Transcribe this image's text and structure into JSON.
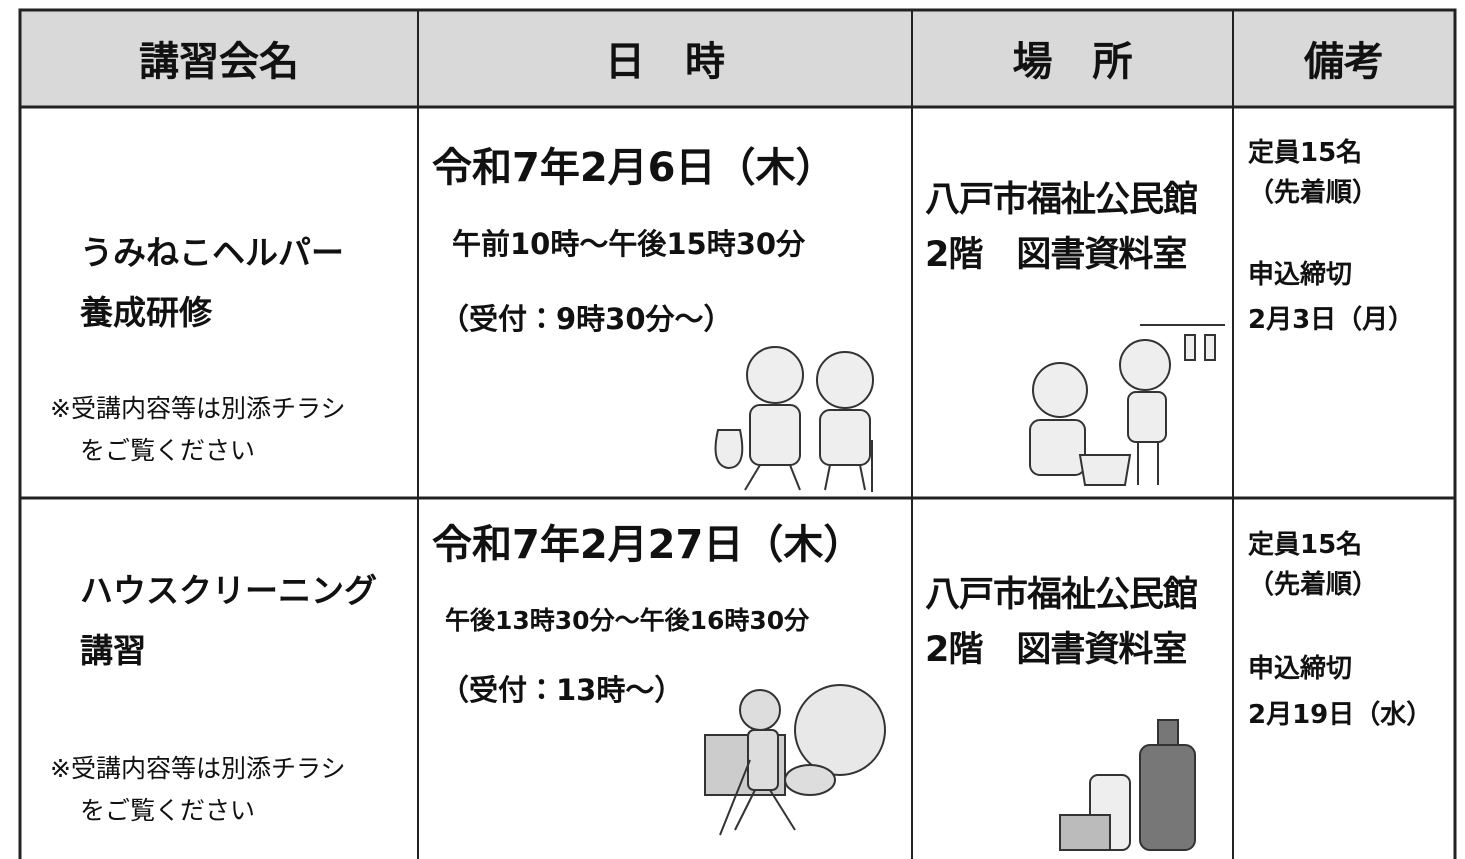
{
  "table": {
    "header": [
      "講習会名",
      "日　時",
      "場　所",
      "備考"
    ],
    "rows": [
      {
        "name": [
          "うみねこヘルパー",
          "養成研修"
        ],
        "note": [
          "※受講内容等は別添チラシ",
          "をご覧ください"
        ],
        "date": "令和7年2月6日（木）",
        "time": "午前10時～午後15時30分",
        "reception": "（受付：9時30分～）",
        "place": [
          "八戸市福祉公民館",
          "2階　図書資料室"
        ],
        "remarks": [
          "定員15名",
          "（先着順）",
          "申込締切",
          "2月3日（月）"
        ]
      },
      {
        "name": [
          "ハウスクリーニング",
          "講習"
        ],
        "note": [
          "※受講内容等は別添チラシ",
          "をご覧ください"
        ],
        "date": "令和7年2月27日（木）",
        "time": "午後13時30分～午後16時30分",
        "reception": "（受付：13時～）",
        "place": [
          "八戸市福祉公民館",
          "2階　図書資料室"
        ],
        "remarks": [
          "定員15名",
          "（先着順）",
          "申込締切",
          "2月19日（水）"
        ]
      }
    ]
  }
}
